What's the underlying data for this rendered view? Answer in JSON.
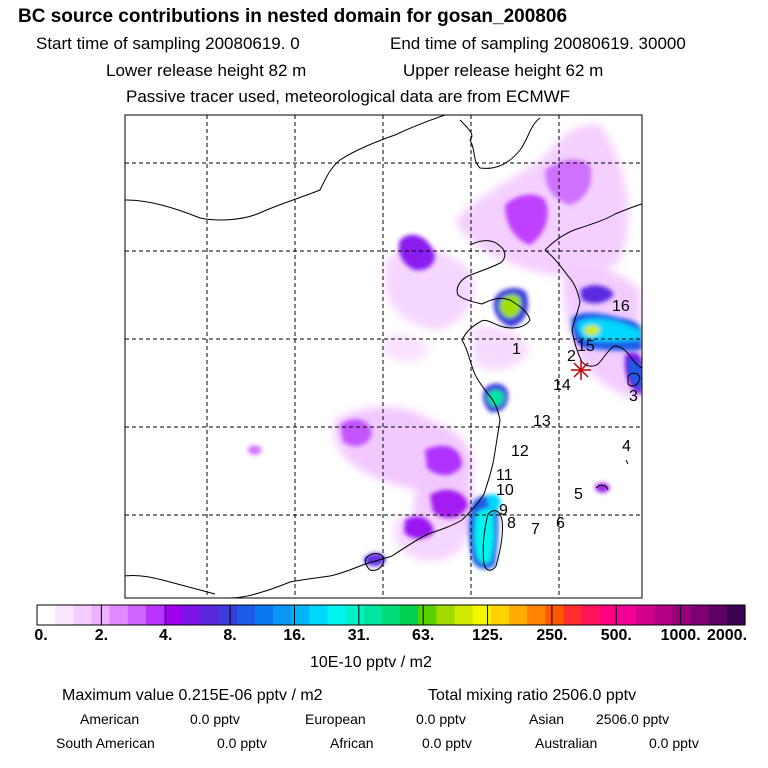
{
  "header": {
    "title": "BC  source contributions in nested domain for gosan_200806",
    "start_time": "Start time of sampling 20080619.     0",
    "end_time": "End time of sampling 20080619. 30000",
    "lower_height": "Lower release height   82 m",
    "upper_height": "Upper release height   62 m",
    "tracer_note": "Passive tracer used, meteorological data are from ECMWF"
  },
  "chart_data": {
    "type": "heatmap",
    "title": "BC  source contributions in nested domain for gosan_200806",
    "colorbar": {
      "label": "10E-10 pptv / m2",
      "tick_labels": [
        "0.",
        "2.",
        "4.",
        "8.",
        "16.",
        "31.",
        "63.",
        "125.",
        "250.",
        "500.",
        "1000.",
        "2000."
      ],
      "colors": [
        "#ffffff",
        "#fbe6ff",
        "#f4ccff",
        "#eeb3ff",
        "#e08aff",
        "#d066ff",
        "#bb33ff",
        "#a000ee",
        "#7d14e6",
        "#5a28dc",
        "#3c3cdc",
        "#1f5ae6",
        "#0a78f0",
        "#0a96f5",
        "#00b4ff",
        "#00d7ff",
        "#00f5f0",
        "#00f0c8",
        "#00e6a0",
        "#00dc78",
        "#00d250",
        "#5ad200",
        "#a0dc00",
        "#d2ec00",
        "#f5f500",
        "#ffd200",
        "#ffaa00",
        "#ff8200",
        "#ff5a00",
        "#ff2d2d",
        "#ff145a",
        "#ff0082",
        "#f00096",
        "#d2008c",
        "#b40082",
        "#96007d",
        "#7d0073",
        "#5f0064",
        "#3c0050"
      ]
    },
    "source_region_labels": [
      "1",
      "2",
      "3",
      "4",
      "5",
      "6",
      "7",
      "8",
      "9",
      "10",
      "11",
      "12",
      "13",
      "14",
      "15",
      "16"
    ],
    "receptor": "gosan",
    "stats": {
      "maximum_value": "Maximum value  0.215E-06 pptv / m2",
      "total_mixing_ratio": "Total mixing ratio     2506.0 pptv"
    },
    "region_contributions": [
      {
        "name": "American",
        "value": "0.0 pptv"
      },
      {
        "name": "European",
        "value": "0.0 pptv"
      },
      {
        "name": "Asian",
        "value": "2506.0 pptv"
      },
      {
        "name": "South American",
        "value": "0.0 pptv"
      },
      {
        "name": "African",
        "value": "0.0 pptv"
      },
      {
        "name": "Australian",
        "value": "0.0 pptv"
      }
    ]
  }
}
